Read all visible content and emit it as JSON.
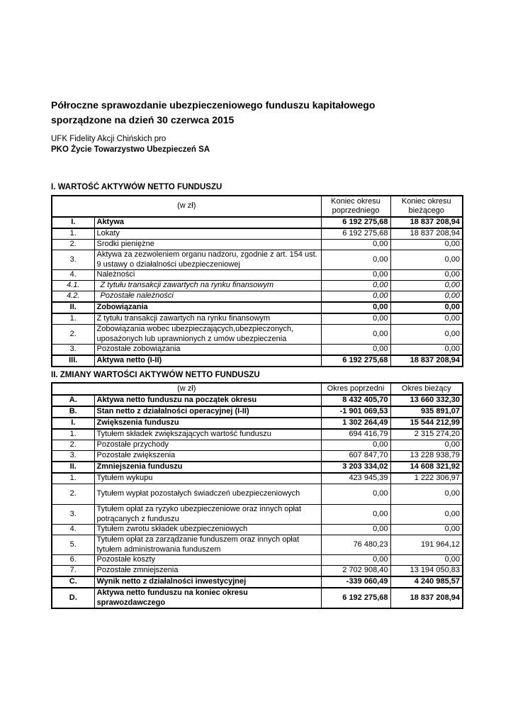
{
  "doc": {
    "title_line1": "Półroczne sprawozdanie ubezpieczeniowego funduszu kapitałowego",
    "title_line2": "sporządzone na dzień 30 czerwca 2015",
    "fund_line": "UFK Fidelity Akcji Chińskich pro",
    "company_line": "PKO Życie Towarzystwo Ubezpieczeń SA",
    "text_color": "#000000",
    "background_color": "#ffffff"
  },
  "table1": {
    "title": "I. WARTOŚĆ AKTYWÓW NETTO FUNDUSZU",
    "unit_header": "(w zł)",
    "col_headers": [
      "Koniec okresu poprzedniego",
      "Koniec okresu bieżącego"
    ],
    "rows": [
      {
        "no": "I.",
        "label": "Aktywa",
        "prev": "6 192 275,68",
        "curr": "18 837 208,94",
        "style": "bold"
      },
      {
        "no": "1.",
        "label": "Lokaty",
        "prev": "6 192 275,68",
        "curr": "18 837 208,94"
      },
      {
        "no": "2.",
        "label": "Środki pieniężne",
        "prev": "0,00",
        "curr": "0,00"
      },
      {
        "no": "3.",
        "label": "Aktywa za zezwoleniem organu nadzoru, zgodnie z art. 154 ust. 9 ustawy o działalności ubezpieczeniowej",
        "prev": "0,00",
        "curr": "0,00"
      },
      {
        "no": "4.",
        "label": "Należności",
        "prev": "0,00",
        "curr": "0,00"
      },
      {
        "no": "4.1.",
        "label": "Z tytułu transakcji zawartych na rynku finansowym",
        "prev": "0,00",
        "curr": "0,00",
        "style": "italic"
      },
      {
        "no": "4.2.",
        "label": "Pozostałe należności",
        "prev": "0,00",
        "curr": "0,00",
        "style": "italic"
      },
      {
        "no": "II.",
        "label": "Zobowiązania",
        "prev": "0,00",
        "curr": "0,00",
        "style": "bold"
      },
      {
        "no": "1.",
        "label": "Z tytułu transakcji zawartych na rynku finansowym",
        "prev": "0,00",
        "curr": "0,00"
      },
      {
        "no": "2.",
        "label": "Zobowiązania wobec ubezpieczających,ubezpieczonych, uposażonych lub uprawnionych z umów ubezpieczenia",
        "prev": "0,00",
        "curr": "0,00"
      },
      {
        "no": "3.",
        "label": "Pozostałe zobowiązania",
        "prev": "0,00",
        "curr": "0,00"
      },
      {
        "no": "III.",
        "label": "Aktywa netto (I-II)",
        "prev": "6 192 275,68",
        "curr": "18 837 208,94",
        "style": "bold"
      }
    ]
  },
  "table2": {
    "title": "II. ZMIANY WARTOŚCI AKTYWÓW NETTO FUNDUSZU",
    "unit_header": "(w zł)",
    "col_headers": [
      "Okres poprzedni",
      "Okres bieżący"
    ],
    "rows": [
      {
        "no": "A.",
        "label": "Aktywa netto funduszu na początek okresu",
        "prev": "8 432 405,70",
        "curr": "13 660 332,30",
        "style": "bold"
      },
      {
        "no": "B.",
        "label": "Stan netto z działalności operacyjnej (I-II)",
        "prev": "-1 901 069,53",
        "curr": "935 891,07",
        "style": "bold"
      },
      {
        "no": "I.",
        "label": "Zwiększenia funduszu",
        "prev": "1 302 264,49",
        "curr": "15 544 212,99",
        "style": "bold"
      },
      {
        "no": "1.",
        "label": "Tytułem składek zwiększających wartość funduszu",
        "prev": "694 416,79",
        "curr": "2 315 274,20"
      },
      {
        "no": "2.",
        "label": "Pozostałe przychody",
        "prev": "0,00",
        "curr": "0,00"
      },
      {
        "no": "3.",
        "label": "Pozostałe zwiększenia",
        "prev": "607 847,70",
        "curr": "13 228 938,79"
      },
      {
        "no": "II.",
        "label": "Zmniejszenia funduszu",
        "prev": "3 203 334,02",
        "curr": "14 608 321,92",
        "style": "bold"
      },
      {
        "no": "1.",
        "label": "Tytułem wykupu",
        "prev": "423 945,39",
        "curr": "1 222 306,97"
      },
      {
        "no": "2.",
        "label": "Tytułem wypłat pozostałych świadczeń ubezpieczeniowych",
        "prev": "0,00",
        "curr": "0,00",
        "style": "tall"
      },
      {
        "no": "3.",
        "label": "Tytułem opłat za ryzyko ubezpieczeniowe oraz innych opłat potrącanych z funduszu",
        "prev": "0,00",
        "curr": "0,00"
      },
      {
        "no": "4.",
        "label": "Tytułem zwrotu składek ubezpieczeniowych",
        "prev": "0,00",
        "curr": "0,00"
      },
      {
        "no": "5.",
        "label": "Tytułem opłat za zarządzanie funduszem oraz innych opłat tytułem administrowania funduszem",
        "prev": "76 480,23",
        "curr": "191 964,12"
      },
      {
        "no": "6.",
        "label": "Pozostałe koszty",
        "prev": "0,00",
        "curr": "0,00"
      },
      {
        "no": "7.",
        "label": "Pozostałe zmniejszenia",
        "prev": "2 702 908,40",
        "curr": "13 194 050,83"
      },
      {
        "no": "C.",
        "label": "Wynik netto z działalności inwestycyjnej",
        "prev": "-339 060,49",
        "curr": "4 240 985,57",
        "style": "bold"
      },
      {
        "no": "D.",
        "label": "Aktywa netto funduszu na koniec okresu\nsprawozdawczego",
        "prev": "6 192 275,68",
        "curr": "18 837 208,94",
        "style": "bold"
      }
    ]
  }
}
